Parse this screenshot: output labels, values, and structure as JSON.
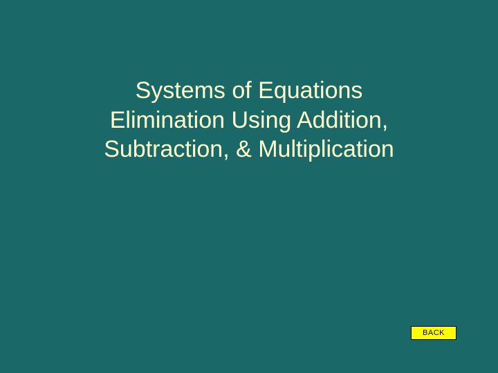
{
  "slide": {
    "background_color": "#1a6868",
    "title": {
      "line1": "Systems of Equations",
      "line2": "Elimination Using Addition,",
      "line3": "Subtraction, & Multiplication",
      "color": "#ffffcc",
      "fontsize": 34
    },
    "back_button": {
      "label": "BACK",
      "background_color": "#ffff00",
      "text_color": "#000000"
    }
  }
}
